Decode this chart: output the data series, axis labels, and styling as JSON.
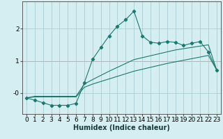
{
  "title": "",
  "xlabel": "Humidex (Indice chaleur)",
  "background_color": "#d4eef2",
  "grid_color": "#aacdd4",
  "line_color": "#1a7a6e",
  "red_line_color": "#cc3333",
  "x_data": [
    0,
    1,
    2,
    3,
    4,
    5,
    6,
    7,
    8,
    9,
    10,
    11,
    12,
    13,
    14,
    15,
    16,
    17,
    18,
    19,
    20,
    21,
    22,
    23
  ],
  "y_main": [
    -0.15,
    -0.22,
    -0.3,
    -0.38,
    -0.38,
    -0.38,
    -0.32,
    0.32,
    1.05,
    1.42,
    1.78,
    2.08,
    2.28,
    2.55,
    1.78,
    1.58,
    1.55,
    1.6,
    1.58,
    1.48,
    1.55,
    1.6,
    1.28,
    0.72
  ],
  "y_upper": [
    -0.15,
    -0.1,
    -0.1,
    -0.1,
    -0.1,
    -0.1,
    -0.1,
    0.28,
    0.42,
    0.55,
    0.68,
    0.8,
    0.92,
    1.04,
    1.1,
    1.16,
    1.22,
    1.28,
    1.34,
    1.38,
    1.42,
    1.46,
    1.5,
    0.72
  ],
  "y_lower": [
    -0.15,
    -0.12,
    -0.12,
    -0.12,
    -0.12,
    -0.12,
    -0.12,
    0.18,
    0.28,
    0.36,
    0.44,
    0.52,
    0.6,
    0.68,
    0.74,
    0.8,
    0.86,
    0.92,
    0.97,
    1.02,
    1.07,
    1.12,
    1.17,
    0.72
  ],
  "ytick_vals": [
    0,
    1,
    2
  ],
  "ytick_labels": [
    "-0",
    "1",
    "2"
  ],
  "ylim": [
    -0.65,
    2.85
  ],
  "xlim": [
    -0.5,
    23.5
  ],
  "xlabel_fontsize": 7,
  "tick_fontsize": 6.5,
  "red_y": 1.0
}
